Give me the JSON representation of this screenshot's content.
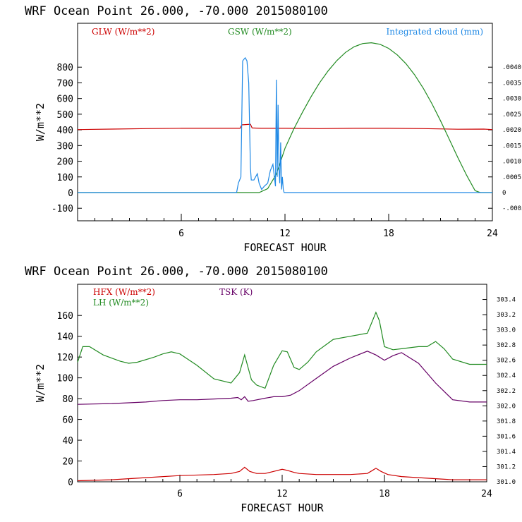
{
  "chart_data": [
    {
      "type": "line",
      "title": "WRF   Ocean Point   26.000, -70.000  2015080100",
      "xlabel": "FORECAST HOUR",
      "ylabel": "W/m**2",
      "xlim": [
        0,
        24
      ],
      "ylim": [
        -180,
        1080
      ],
      "x_ticks": [
        6,
        12,
        18,
        24
      ],
      "y_ticks": [
        -100,
        0,
        100,
        200,
        300,
        400,
        500,
        600,
        700,
        800
      ],
      "y2_lim": [
        -0.0009,
        0.0054
      ],
      "y2_ticks": [
        -0.0005,
        0,
        0.0005,
        0.001,
        0.0015,
        0.002,
        0.0025,
        0.003,
        0.0035,
        0.004
      ],
      "y2_tick_labels": [
        "-.0005",
        "0",
        ".0005",
        ".0010",
        ".0015",
        ".0020",
        ".0025",
        ".0030",
        ".0035",
        ".0040"
      ],
      "series": [
        {
          "name": "GLW (W/m**2)",
          "color": "#cc0000",
          "axis": "left",
          "x": [
            0,
            2,
            4,
            6,
            8,
            9.4,
            9.5,
            10,
            10.1,
            10.6,
            12,
            14,
            16,
            18,
            20,
            22,
            23.5,
            24
          ],
          "y": [
            402,
            405,
            408,
            410,
            410,
            410,
            432,
            436,
            412,
            410,
            410,
            408,
            410,
            410,
            408,
            404,
            405,
            402
          ]
        },
        {
          "name": "GSW (W/m**2)",
          "color": "#228b22",
          "axis": "left",
          "x": [
            0,
            10.5,
            11,
            11.5,
            12,
            12.5,
            13,
            13.5,
            14,
            14.5,
            15,
            15.5,
            16,
            16.5,
            17,
            17.5,
            18,
            18.5,
            19,
            19.5,
            20,
            20.5,
            21,
            21.5,
            22,
            22.5,
            23,
            23.3,
            24
          ],
          "y": [
            0,
            0,
            25,
            118,
            282,
            404,
            510,
            610,
            700,
            777,
            842,
            894,
            930,
            951,
            956,
            946,
            920,
            878,
            822,
            751,
            666,
            567,
            458,
            341,
            224,
            112,
            12,
            0,
            0
          ]
        },
        {
          "name": "Integrated cloud (mm)",
          "color": "#1e88e5",
          "axis": "right",
          "x": [
            0,
            9.2,
            9.3,
            9.45,
            9.55,
            9.7,
            9.8,
            9.9,
            10.0,
            10.05,
            10.2,
            10.4,
            10.5,
            10.65,
            10.8,
            11.0,
            11.15,
            11.3,
            11.45,
            11.5,
            11.55,
            11.6,
            11.65,
            11.7,
            11.75,
            11.8,
            11.85,
            11.9,
            11.95,
            12.0,
            24
          ],
          "y": [
            0,
            0,
            0.0003,
            0.0005,
            0.0042,
            0.0043,
            0.0042,
            0.0035,
            0.0008,
            0.0004,
            0.0004,
            0.0006,
            0.0003,
            0.0001,
            0.0002,
            0.0003,
            0.0007,
            0.0009,
            0.0002,
            0.0036,
            0.0005,
            0.0028,
            0.0008,
            0.0003,
            0.0016,
            0.0001,
            0.0005,
            0.0001,
            0,
            0,
            0
          ]
        }
      ]
    },
    {
      "type": "line",
      "title": "WRF   Ocean Point   26.000, -70.000  2015080100",
      "xlabel": "FORECAST HOUR",
      "ylabel": "W/m**2",
      "xlim": [
        0,
        24
      ],
      "ylim": [
        0,
        190
      ],
      "x_ticks": [
        6,
        12,
        18,
        24
      ],
      "y_ticks": [
        0,
        20,
        40,
        60,
        80,
        100,
        120,
        140,
        160
      ],
      "y2_lim": [
        301.0,
        303.6
      ],
      "y2_ticks": [
        301.0,
        301.2,
        301.4,
        301.6,
        301.8,
        302.0,
        302.2,
        302.4,
        302.6,
        302.8,
        303.0,
        303.2,
        303.4
      ],
      "y2_tick_labels": [
        "301.0",
        "301.2",
        "301.4",
        "301.6",
        "301.8",
        "302.0",
        "302.2",
        "302.4",
        "302.6",
        "302.8",
        "303.0",
        "303.2",
        "303.4"
      ],
      "series": [
        {
          "name": "HFX (W/m**2)",
          "color": "#cc0000",
          "axis": "left",
          "x": [
            0,
            2,
            4,
            6,
            8,
            9,
            9.5,
            9.8,
            10.1,
            10.5,
            11,
            11.5,
            12,
            12.3,
            12.7,
            13,
            14,
            15,
            16,
            17,
            17.3,
            17.5,
            17.8,
            18.2,
            19,
            20,
            21,
            22,
            23,
            24
          ],
          "y": [
            1,
            2,
            4,
            6,
            7,
            8,
            10,
            14,
            10,
            8,
            8,
            10,
            12,
            11,
            9,
            8,
            7,
            7,
            7,
            8,
            11,
            13,
            10,
            7,
            5,
            4,
            3,
            2,
            2,
            2
          ]
        },
        {
          "name": "LH (W/m**2)",
          "color": "#228b22",
          "axis": "left",
          "x": [
            0,
            0.3,
            0.7,
            1.5,
            2.5,
            3,
            3.5,
            4.5,
            5,
            5.5,
            6,
            7,
            8,
            9,
            9.5,
            9.8,
            10.2,
            10.5,
            11,
            11.5,
            12,
            12.3,
            12.7,
            13,
            13.5,
            14,
            15,
            16,
            17,
            17.3,
            17.5,
            17.7,
            18,
            18.5,
            19,
            20,
            20.5,
            21,
            21.5,
            22,
            23,
            24
          ],
          "y": [
            115,
            130,
            130,
            122,
            116,
            114,
            115,
            120,
            123,
            125,
            123,
            112,
            99,
            95,
            105,
            122,
            98,
            93,
            90,
            112,
            126,
            125,
            110,
            108,
            115,
            125,
            137,
            140,
            143,
            155,
            163,
            155,
            130,
            127,
            128,
            130,
            130,
            135,
            128,
            118,
            113,
            113
          ]
        },
        {
          "name": "TSK (K)",
          "color": "#660066",
          "axis": "right",
          "x": [
            0,
            2,
            4,
            5,
            6,
            7,
            8,
            9,
            9.4,
            9.6,
            9.8,
            10,
            10.3,
            11,
            11.5,
            12,
            12.5,
            13,
            14,
            15,
            16,
            17,
            17.5,
            18,
            18.5,
            19,
            20,
            21,
            22,
            23,
            24
          ],
          "y": [
            302.02,
            302.03,
            302.05,
            302.07,
            302.08,
            302.08,
            302.09,
            302.1,
            302.11,
            302.08,
            302.12,
            302.06,
            302.07,
            302.1,
            302.12,
            302.12,
            302.14,
            302.2,
            302.36,
            302.52,
            302.63,
            302.72,
            302.67,
            302.6,
            302.66,
            302.7,
            302.56,
            302.3,
            302.08,
            302.05,
            302.05
          ]
        }
      ]
    }
  ]
}
